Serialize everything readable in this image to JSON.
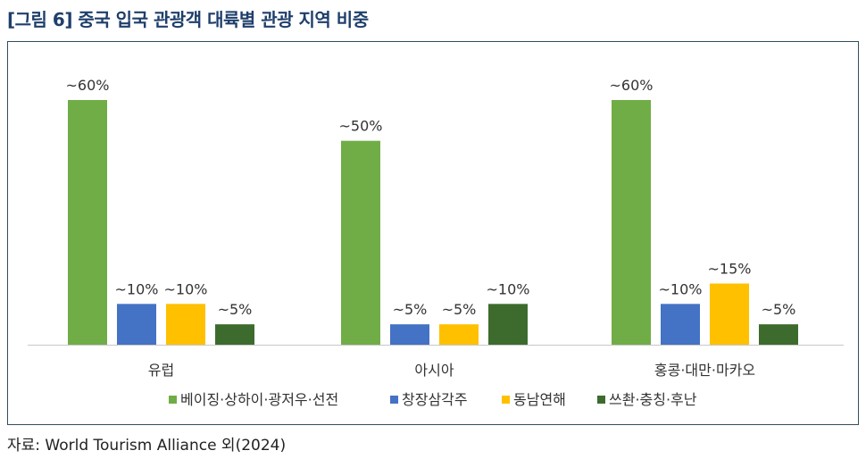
{
  "figure": {
    "title": "[그림 6] 중국 입국 관광객 대륙별 관광 지역 비중",
    "source": "자료: World Tourism Alliance 외(2024)"
  },
  "colors": {
    "title": "#1f3f6b",
    "frame": "#2f4f5f",
    "axis": "#c8c8c8"
  },
  "chart_data": {
    "type": "bar",
    "title": "",
    "xlabel": "",
    "ylabel": "",
    "ylim": [
      0,
      60
    ],
    "grid": false,
    "legend_position": "bottom",
    "categories": [
      "유럽",
      "아시아",
      "홍콩·대만·마카오"
    ],
    "series": [
      {
        "name": "베이징·상하이·광저우·선전",
        "color": "#70ad47",
        "values": [
          60,
          50,
          60
        ],
        "labels": [
          "~60%",
          "~50%",
          "~60%"
        ]
      },
      {
        "name": "창장삼각주",
        "color": "#4472c4",
        "values": [
          10,
          5,
          10
        ],
        "labels": [
          "~10%",
          "~5%",
          "~10%"
        ]
      },
      {
        "name": "동남연해",
        "color": "#ffc000",
        "values": [
          10,
          5,
          15
        ],
        "labels": [
          "~10%",
          "~5%",
          "~15%"
        ]
      },
      {
        "name": "쓰촨·충칭·후난",
        "color": "#3d6b2d",
        "values": [
          5,
          10,
          5
        ],
        "labels": [
          "~5%",
          "~10%",
          "~5%"
        ]
      }
    ]
  }
}
